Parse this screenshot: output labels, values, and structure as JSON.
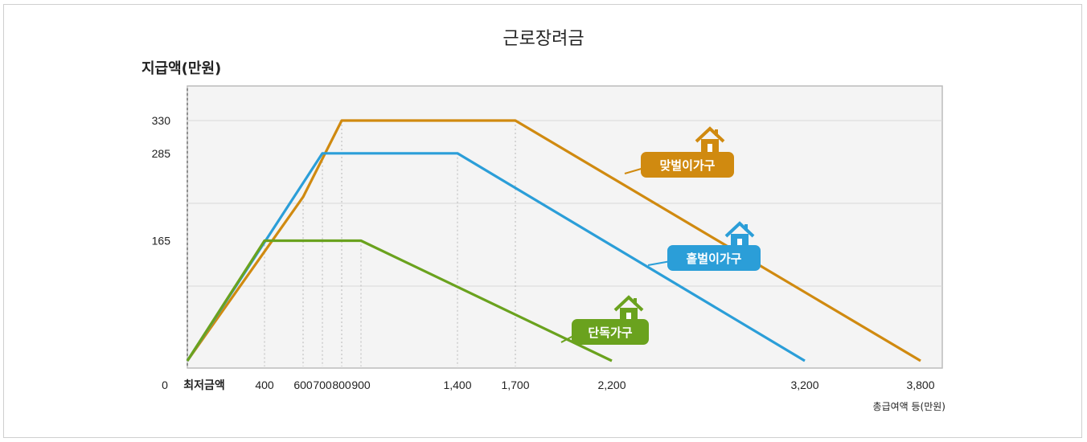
{
  "chart_data": {
    "type": "line",
    "title": "근로장려금",
    "ylabel": "지급액(만원)",
    "xlabel": "총급여액 등(만원)",
    "origin_label": "0",
    "x_start_label": "최저금액",
    "x_ticks": [
      {
        "value": 400,
        "label": "400"
      },
      {
        "value": 600,
        "label": "600"
      },
      {
        "value": 700,
        "label": "700"
      },
      {
        "value": 800,
        "label": "800"
      },
      {
        "value": 900,
        "label": "900"
      },
      {
        "value": 1400,
        "label": "1,400"
      },
      {
        "value": 1700,
        "label": "1,700"
      },
      {
        "value": 2200,
        "label": "2,200"
      },
      {
        "value": 3200,
        "label": "3,200"
      },
      {
        "value": 3800,
        "label": "3,800"
      }
    ],
    "y_ticks": [
      {
        "value": 165,
        "label": "165"
      },
      {
        "value": 285,
        "label": "285"
      },
      {
        "value": 330,
        "label": "330"
      }
    ],
    "xlim": [
      0,
      3800
    ],
    "ylim": [
      0,
      330
    ],
    "grid": true,
    "series": [
      {
        "name": "맞벌이가구",
        "color": "#d08a10",
        "icon": "house-icon",
        "points": [
          [
            0,
            0
          ],
          [
            600,
            225
          ],
          [
            800,
            330
          ],
          [
            1700,
            330
          ],
          [
            3800,
            0
          ]
        ]
      },
      {
        "name": "홑벌이가구",
        "color": "#2b9ed8",
        "icon": "house-icon",
        "points": [
          [
            0,
            0
          ],
          [
            700,
            285
          ],
          [
            1400,
            285
          ],
          [
            3200,
            0
          ]
        ]
      },
      {
        "name": "단독가구",
        "color": "#6aa21e",
        "icon": "house-icon",
        "points": [
          [
            0,
            0
          ],
          [
            400,
            165
          ],
          [
            900,
            165
          ],
          [
            2200,
            0
          ]
        ]
      }
    ]
  }
}
